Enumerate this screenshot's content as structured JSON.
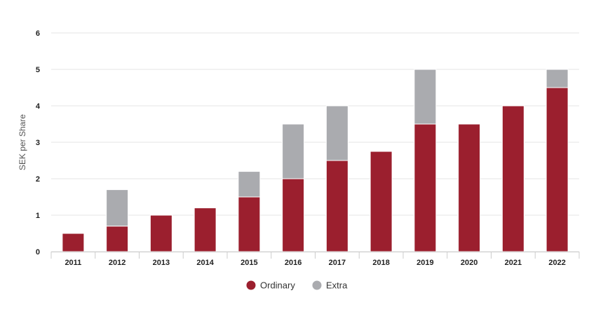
{
  "chart_data": {
    "type": "bar",
    "stacked": true,
    "categories": [
      "2011",
      "2012",
      "2013",
      "2014",
      "2015",
      "2016",
      "2017",
      "2018",
      "2019",
      "2020",
      "2021",
      "2022"
    ],
    "series": [
      {
        "name": "Ordinary",
        "color": "#9b1f2e",
        "values": [
          0.5,
          0.7,
          1.0,
          1.2,
          1.5,
          2.0,
          2.5,
          2.75,
          3.5,
          3.5,
          4.0,
          4.5
        ]
      },
      {
        "name": "Extra",
        "color": "#aaabaf",
        "values": [
          0,
          1.0,
          0,
          0,
          0.7,
          1.5,
          1.5,
          0,
          1.5,
          0,
          0,
          0.5
        ]
      }
    ],
    "xlabel": "",
    "ylabel": "SEK per Share",
    "ylim": [
      0,
      6
    ],
    "yticks": [
      "0",
      "1",
      "2",
      "3",
      "4",
      "5",
      "6"
    ],
    "grid": true,
    "legend_position": "bottom-center"
  }
}
